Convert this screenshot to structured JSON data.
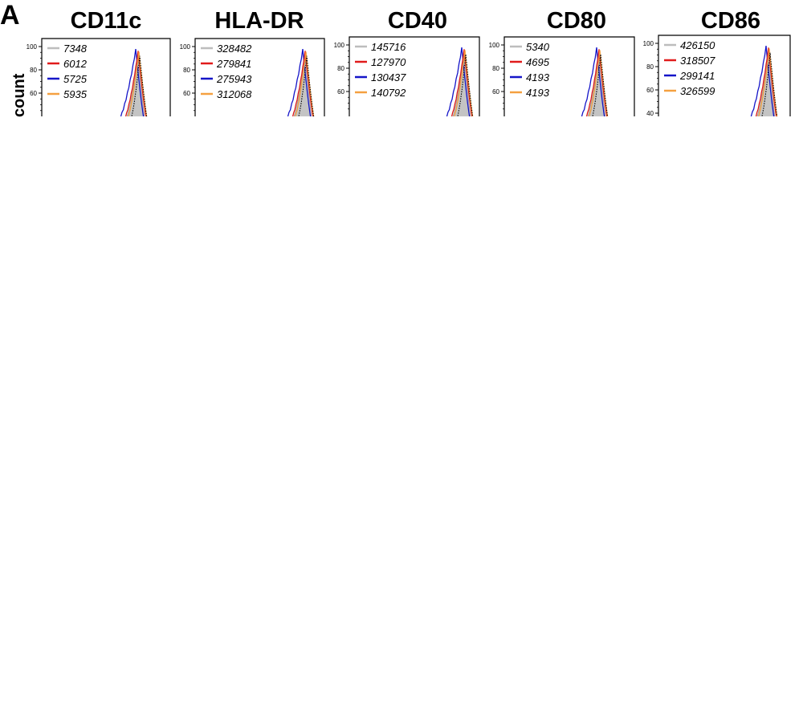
{
  "panel_label": "A",
  "ylabel": "count",
  "colors": {
    "gray": "#bdbdbd",
    "red": "#e01b1b",
    "blue": "#1515c8",
    "orange": "#f5a040",
    "fill": "#c4c4c4",
    "dotted": "#000000"
  },
  "chart_data": [
    {
      "type": "area",
      "title": "CD11c",
      "y_ticks": [
        "100",
        "80",
        "60"
      ],
      "ylim": [
        40,
        100
      ],
      "legend": [
        {
          "value": "7348",
          "color": "gray"
        },
        {
          "value": "6012",
          "color": "red"
        },
        {
          "value": "5725",
          "color": "blue"
        },
        {
          "value": "5935",
          "color": "orange"
        }
      ]
    },
    {
      "type": "area",
      "title": "HLA-DR",
      "y_ticks": [
        "100",
        "80",
        "60"
      ],
      "ylim": [
        40,
        100
      ],
      "legend": [
        {
          "value": "328482",
          "color": "gray"
        },
        {
          "value": "279841",
          "color": "red"
        },
        {
          "value": "275943",
          "color": "blue"
        },
        {
          "value": "312068",
          "color": "orange"
        }
      ]
    },
    {
      "type": "area",
      "title": "CD40",
      "y_ticks": [
        "100",
        "80",
        "60"
      ],
      "ylim": [
        40,
        100
      ],
      "legend": [
        {
          "value": "145716",
          "color": "gray"
        },
        {
          "value": "127970",
          "color": "red"
        },
        {
          "value": "130437",
          "color": "blue"
        },
        {
          "value": "140792",
          "color": "orange"
        }
      ]
    },
    {
      "type": "area",
      "title": "CD80",
      "y_ticks": [
        "100",
        "80",
        "60"
      ],
      "ylim": [
        40,
        100
      ],
      "legend": [
        {
          "value": "5340",
          "color": "gray"
        },
        {
          "value": "4695",
          "color": "red"
        },
        {
          "value": "4193",
          "color": "blue"
        },
        {
          "value": "4193",
          "color": "orange"
        }
      ]
    },
    {
      "type": "area",
      "title": "CD86",
      "y_ticks": [
        "100",
        "80",
        "60",
        "40"
      ],
      "ylim": [
        40,
        100
      ],
      "legend": [
        {
          "value": "426150",
          "color": "gray"
        },
        {
          "value": "318507",
          "color": "red"
        },
        {
          "value": "299141",
          "color": "blue"
        },
        {
          "value": "326599",
          "color": "orange"
        }
      ]
    }
  ]
}
